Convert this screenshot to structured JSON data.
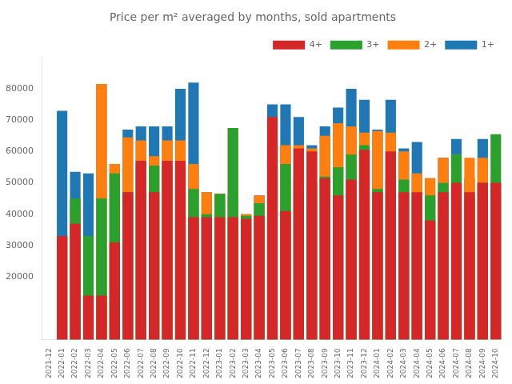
{
  "chart_data": {
    "type": "bar",
    "title": "Price per m² averaged by months, sold apartments",
    "categories": [
      "2021-12",
      "2022-01",
      "2022-02",
      "2022-03",
      "2022-04",
      "2022-05",
      "2022-06",
      "2022-07",
      "2022-08",
      "2022-09",
      "2022-10",
      "2022-11",
      "2022-12",
      "2023-01",
      "2023-02",
      "2023-03",
      "2023-04",
      "2023-05",
      "2023-06",
      "2023-07",
      "2023-08",
      "2023-09",
      "2023-10",
      "2023-11",
      "2023-12",
      "2024-01",
      "2024-02",
      "2024-03",
      "2024-04",
      "2024-05",
      "2024-06",
      "2024-07",
      "2024-08",
      "2024-09",
      "2024-10"
    ],
    "series": [
      {
        "name": "1+",
        "color": "#1f77b4",
        "values": [
          0,
          73000,
          53500,
          53000,
          81500,
          56000,
          67000,
          68000,
          68000,
          68000,
          80000,
          82000,
          47000,
          46500,
          46000,
          40000,
          46000,
          75000,
          75000,
          71000,
          62000,
          68000,
          74000,
          80000,
          76500,
          67000,
          76500,
          61000,
          63000,
          51500,
          58000,
          64000,
          51500,
          64000,
          0
        ]
      },
      {
        "name": "2+",
        "color": "#ff7f0e",
        "values": [
          0,
          0,
          41500,
          0,
          81500,
          56000,
          64500,
          63500,
          58500,
          63500,
          63500,
          56000,
          47000,
          46500,
          67500,
          40000,
          46000,
          63000,
          62000,
          62000,
          61000,
          65000,
          69000,
          68000,
          66000,
          66500,
          66000,
          60000,
          53000,
          51500,
          58000,
          59000,
          58000,
          58000,
          0
        ]
      },
      {
        "name": "3+",
        "color": "#2ca02c",
        "values": [
          0,
          33000,
          45000,
          33000,
          45000,
          53000,
          47000,
          55500,
          55500,
          55500,
          57000,
          48000,
          40000,
          46500,
          67500,
          39500,
          43500,
          57000,
          56000,
          51000,
          50000,
          52000,
          55000,
          59000,
          62000,
          48000,
          50500,
          51000,
          46000,
          46000,
          50000,
          59000,
          45500,
          50000,
          65500
        ]
      },
      {
        "name": "4+",
        "color": "#d62728",
        "values": [
          0,
          33000,
          37000,
          14000,
          14000,
          31000,
          47000,
          57000,
          47000,
          57000,
          57000,
          39000,
          39000,
          39000,
          39000,
          38500,
          39500,
          71000,
          41000,
          61000,
          60000,
          51500,
          46000,
          51000,
          60500,
          47000,
          60000,
          47000,
          47000,
          38000,
          47000,
          50000,
          47000,
          50000,
          50000
        ]
      }
    ],
    "ylim": [
      0,
      90000
    ],
    "yticks": [
      20000,
      30000,
      40000,
      50000,
      60000,
      70000,
      80000
    ],
    "grid": false,
    "legend": "upper right"
  }
}
